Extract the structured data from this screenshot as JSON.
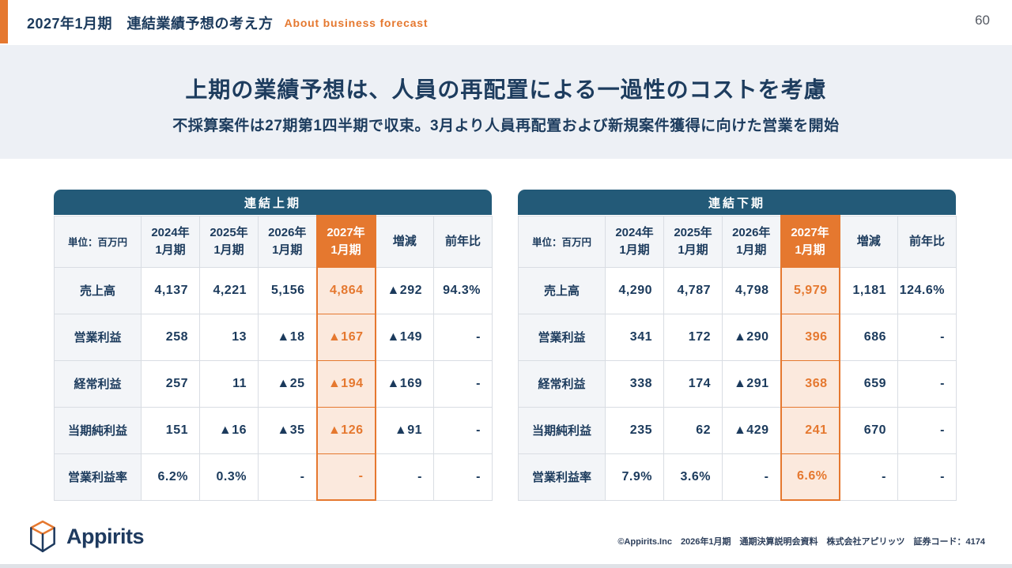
{
  "header": {
    "title": "2027年1月期　連結業績予想の考え方",
    "subtitle": "About business forecast",
    "page_number": "60"
  },
  "banner": {
    "title": "上期の業績予想は、人員の再配置による一過性のコストを考慮",
    "subtitle": "不採算案件は27期第1四半期で収束。3月より人員再配置および新規案件獲得に向けた営業を開始"
  },
  "tables": [
    {
      "title": "連結上期",
      "unit_label": "単位：百万円",
      "columns": [
        "2024年\n1月期",
        "2025年\n1月期",
        "2026年\n1月期",
        "2027年\n1月期",
        "増減",
        "前年比"
      ],
      "highlight_column_index": 3,
      "rows": [
        {
          "label": "売上高",
          "values": [
            "4,137",
            "4,221",
            "5,156",
            "4,864",
            "▲292",
            "94.3%"
          ]
        },
        {
          "label": "営業利益",
          "values": [
            "258",
            "13",
            "▲18",
            "▲167",
            "▲149",
            "-"
          ]
        },
        {
          "label": "経常利益",
          "values": [
            "257",
            "11",
            "▲25",
            "▲194",
            "▲169",
            "-"
          ]
        },
        {
          "label": "当期純利益",
          "values": [
            "151",
            "▲16",
            "▲35",
            "▲126",
            "▲91",
            "-"
          ]
        },
        {
          "label": "営業利益率",
          "values": [
            "6.2%",
            "0.3%",
            "-",
            "-",
            "-",
            "-"
          ]
        }
      ]
    },
    {
      "title": "連結下期",
      "unit_label": "単位：百万円",
      "columns": [
        "2024年\n1月期",
        "2025年\n1月期",
        "2026年\n1月期",
        "2027年\n1月期",
        "増減",
        "前年比"
      ],
      "highlight_column_index": 3,
      "rows": [
        {
          "label": "売上高",
          "values": [
            "4,290",
            "4,787",
            "4,798",
            "5,979",
            "1,181",
            "124.6%"
          ]
        },
        {
          "label": "営業利益",
          "values": [
            "341",
            "172",
            "▲290",
            "396",
            "686",
            "-"
          ]
        },
        {
          "label": "経常利益",
          "values": [
            "338",
            "174",
            "▲291",
            "368",
            "659",
            "-"
          ]
        },
        {
          "label": "当期純利益",
          "values": [
            "235",
            "62",
            "▲429",
            "241",
            "670",
            "-"
          ]
        },
        {
          "label": "営業利益率",
          "values": [
            "7.9%",
            "3.6%",
            "-",
            "6.6%",
            "-",
            "-"
          ]
        }
      ]
    }
  ],
  "footer": {
    "logo_text": "Appirits",
    "copyright": "©Appirits.Inc　2026年1月期　通期決算説明会資料　株式会社アピリッツ　証券コード：4174"
  },
  "colors": {
    "accent_orange": "#E5782F",
    "header_teal": "#235A78",
    "navy_text": "#1B3A5C",
    "highlight_cell_bg": "#FBE9DD",
    "banner_bg": "#EDF0F5"
  }
}
